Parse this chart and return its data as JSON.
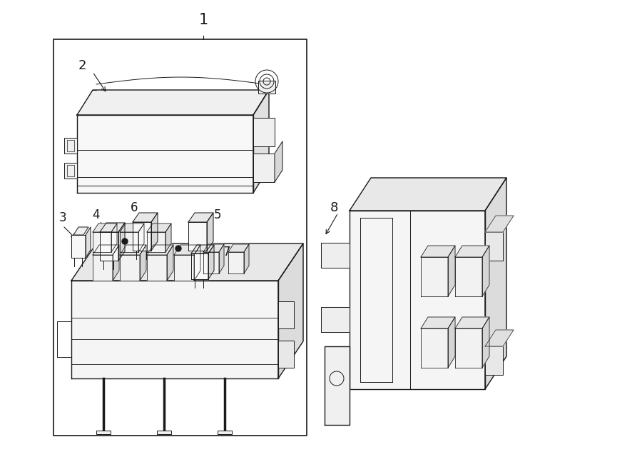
{
  "bg_color": "#ffffff",
  "line_color": "#1a1a1a",
  "fig_width": 9.0,
  "fig_height": 6.61,
  "dpi": 100
}
